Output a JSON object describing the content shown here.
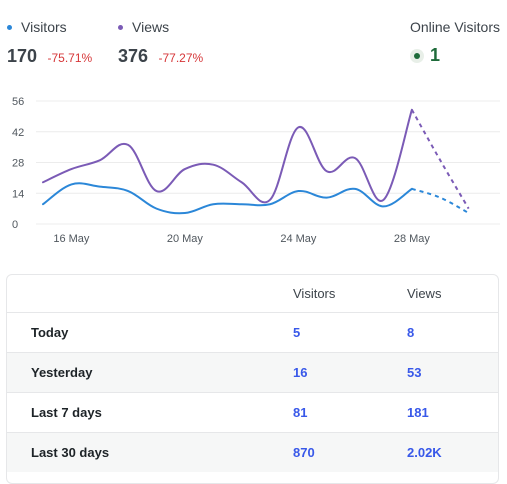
{
  "summary": {
    "visitors": {
      "label": "Visitors",
      "value": "170",
      "change": "-75.71%",
      "color": "#2b87d8"
    },
    "views": {
      "label": "Views",
      "value": "376",
      "change": "-77.27%",
      "color": "#7b5bb6"
    },
    "online": {
      "label": "Online Visitors",
      "value": "1"
    }
  },
  "chart_data": {
    "type": "line",
    "y_ticks": [
      "56",
      "42",
      "28",
      "14",
      "0"
    ],
    "ylim": [
      0,
      56
    ],
    "x_tick_labels": [
      "16 May",
      "20 May",
      "24 May",
      "28 May"
    ],
    "x_tick_positions": [
      1,
      5,
      9,
      13
    ],
    "x_range": [
      0,
      16
    ],
    "series": [
      {
        "name": "Views",
        "color": "#7b5bb6",
        "values": [
          19,
          25,
          29,
          36,
          15,
          25,
          27,
          19,
          11,
          44,
          24,
          30,
          11,
          52,
          29,
          7
        ]
      },
      {
        "name": "Visitors",
        "color": "#2b87d8",
        "values": [
          9,
          18,
          17,
          15,
          7,
          5,
          9,
          9,
          9,
          15,
          12,
          16,
          8,
          16,
          12,
          5
        ]
      }
    ],
    "dashed_from_index": 13
  },
  "table": {
    "headers": {
      "visitors": "Visitors",
      "views": "Views"
    },
    "rows": [
      {
        "label": "Today",
        "visitors": "5",
        "views": "8"
      },
      {
        "label": "Yesterday",
        "visitors": "16",
        "views": "53"
      },
      {
        "label": "Last 7 days",
        "visitors": "81",
        "views": "181"
      },
      {
        "label": "Last 30 days",
        "visitors": "870",
        "views": "2.02K"
      }
    ]
  }
}
